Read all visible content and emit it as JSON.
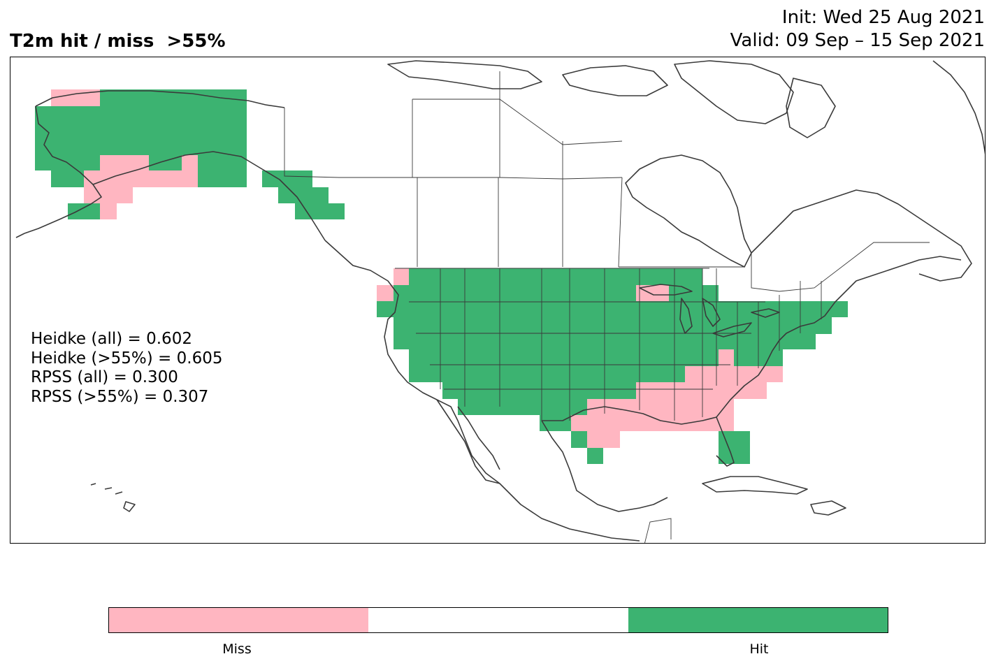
{
  "header": {
    "title": "T2m hit / miss  >55%",
    "init": "Init: Wed 25 Aug 2021",
    "valid": "Valid: 09 Sep – 15 Sep 2021"
  },
  "scores": [
    "Heidke (all) = 0.602",
    "Heidke (>55%) = 0.605",
    "RPSS (all) = 0.300",
    "RPSS (>55%) = 0.307"
  ],
  "colors": {
    "miss": "#ffb6c1",
    "neutral": "#ffffff",
    "hit": "#3cb371",
    "coastline": "#3a3a3a"
  },
  "colorbar": {
    "categories": [
      "Miss",
      "",
      "Hit"
    ],
    "miss_label": "Miss",
    "hit_label": "Hit"
  }
}
